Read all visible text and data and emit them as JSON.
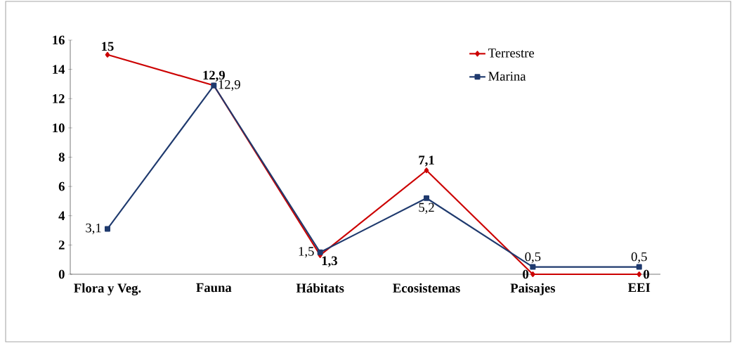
{
  "chart_data": {
    "type": "line",
    "categories": [
      "Flora y Veg.",
      "Fauna",
      "Hábitats",
      "Ecosistemas",
      "Paisajes",
      "EEI"
    ],
    "series": [
      {
        "name": "Terrestre",
        "color": "#cc0000",
        "marker": "diamond",
        "values": [
          15,
          12.9,
          1.3,
          7.1,
          0,
          0
        ],
        "value_labels": [
          "15",
          "12,9",
          "1,3",
          "7,1",
          "0",
          "0"
        ]
      },
      {
        "name": "Marina",
        "color": "#1f3a6e",
        "marker": "square",
        "values": [
          3.1,
          12.9,
          1.5,
          5.2,
          0.5,
          0.5
        ],
        "value_labels": [
          "3,1",
          "12,9",
          "1,5",
          "5,2",
          "0,5",
          "0,5"
        ]
      }
    ],
    "ylim": [
      0,
      16
    ],
    "yticks": [
      0,
      2,
      4,
      6,
      8,
      10,
      12,
      14,
      16
    ],
    "legend": "top right",
    "grid": false
  }
}
